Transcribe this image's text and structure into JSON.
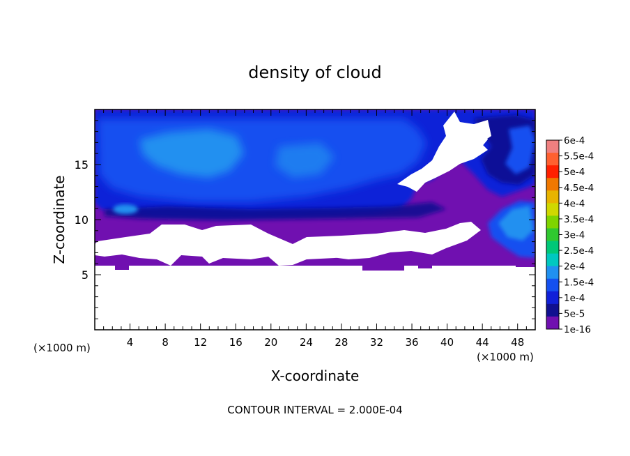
{
  "chart_data": {
    "type": "heatmap",
    "title": "density of cloud",
    "xlabel": "X-coordinate",
    "ylabel": "Z-coordinate",
    "x_unit": "(×1000 m)",
    "z_unit": "(×1000 m)",
    "xlim": [
      0,
      50
    ],
    "ylim": [
      0,
      20
    ],
    "x_ticks": [
      4,
      8,
      12,
      16,
      20,
      24,
      28,
      32,
      36,
      40,
      44,
      48
    ],
    "y_ticks": [
      5,
      10,
      15
    ],
    "footer": "CONTOUR INTERVAL = 2.000E-04",
    "colorbar": {
      "labels": [
        "6e-4",
        "5.5e-4",
        "5e-4",
        "4.5e-4",
        "4e-4",
        "3.5e-4",
        "3e-4",
        "2.5e-4",
        "2e-4",
        "1.5e-4",
        "1e-4",
        "5e-5",
        "1e-16"
      ],
      "colors": [
        "#f08080",
        "#ff6030",
        "#ff2000",
        "#f07800",
        "#e8b400",
        "#d0d800",
        "#7fd400",
        "#30c830",
        "#00c878",
        "#00c8c0",
        "#2090f0",
        "#1450f0",
        "#1020d8",
        "#101090",
        "#7010b0"
      ]
    },
    "regions": {
      "cloud_base_z": 6.0,
      "max_density_core": {
        "x": [
          4,
          18
        ],
        "z": [
          14,
          18
        ],
        "value": "1.5e-4"
      },
      "clear_gap_upper": {
        "x": [
          35,
          44
        ],
        "z": [
          12,
          19.5
        ]
      },
      "clear_gap_lower": {
        "x": [
          0,
          44
        ],
        "z": [
          6,
          9
        ]
      }
    }
  }
}
